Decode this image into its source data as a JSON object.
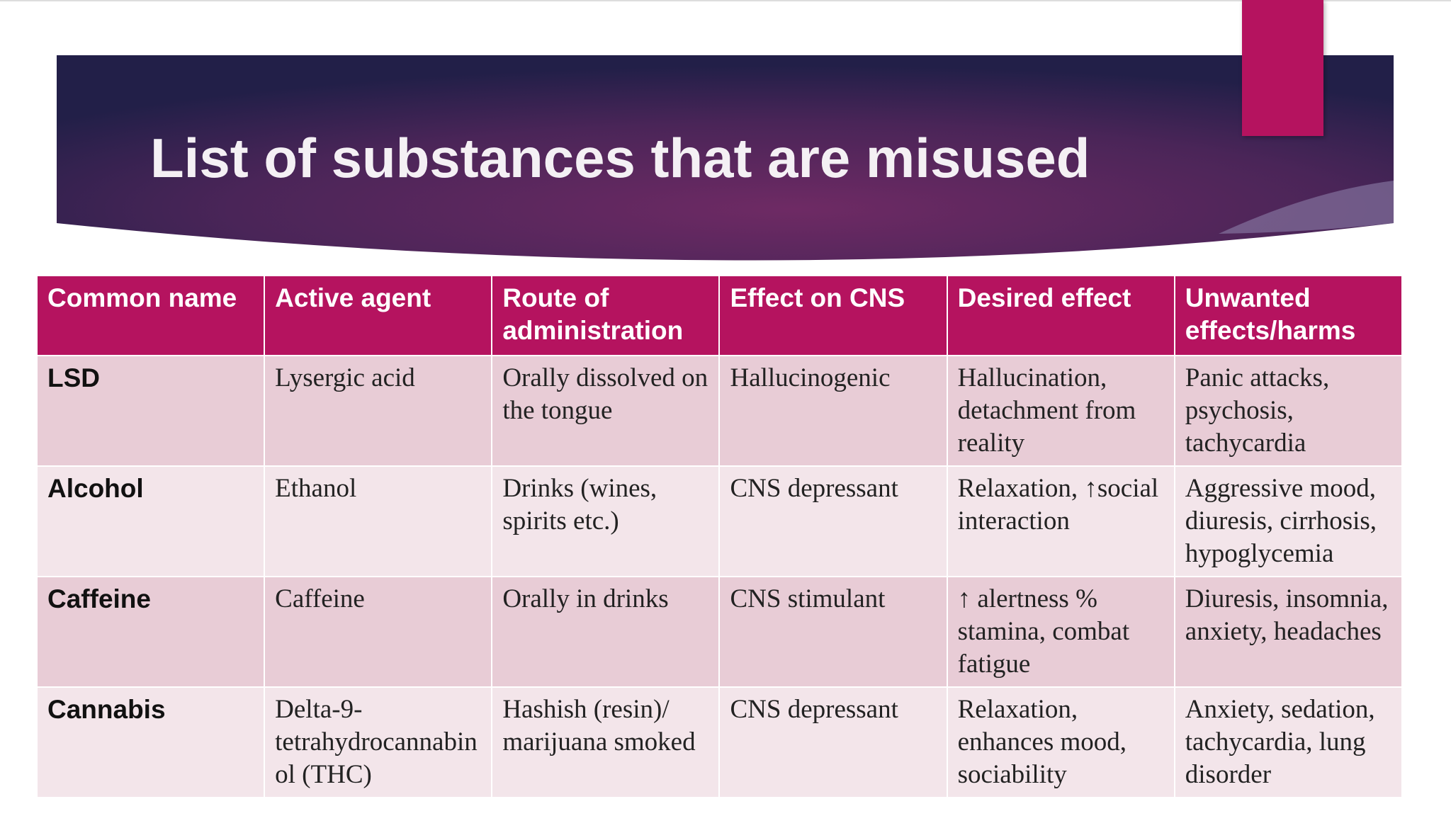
{
  "title": "List of substances that are misused",
  "table": {
    "header": [
      "Common name",
      "Active agent",
      "Route of administration",
      "Effect on CNS",
      "Desired effect",
      "Unwanted effects/harms"
    ],
    "rows": [
      [
        "LSD",
        "Lysergic acid",
        "Orally dissolved on the tongue",
        "Hallucinogenic",
        "Hallucination, detachment from reality",
        "Panic attacks, psychosis, tachycardia"
      ],
      [
        "Alcohol",
        "Ethanol",
        "Drinks (wines, spirits etc.)",
        "CNS depressant",
        "Relaxation, ↑social interaction",
        "Aggressive mood, diuresis, cirrhosis, hypoglycemia"
      ],
      [
        "Caffeine",
        "Caffeine",
        "Orally in drinks",
        "CNS stimulant",
        "↑ alertness % stamina, combat fatigue",
        "Diuresis, insomnia, anxiety, headaches"
      ],
      [
        "Cannabis",
        "Delta-9-tetrahydrocannabinol (THC)",
        "Hashish (resin)/ marijuana smoked",
        "CNS depressant",
        "Relaxation, enhances mood, sociability",
        "Anxiety, sedation, tachycardia, lung disorder"
      ]
    ]
  }
}
